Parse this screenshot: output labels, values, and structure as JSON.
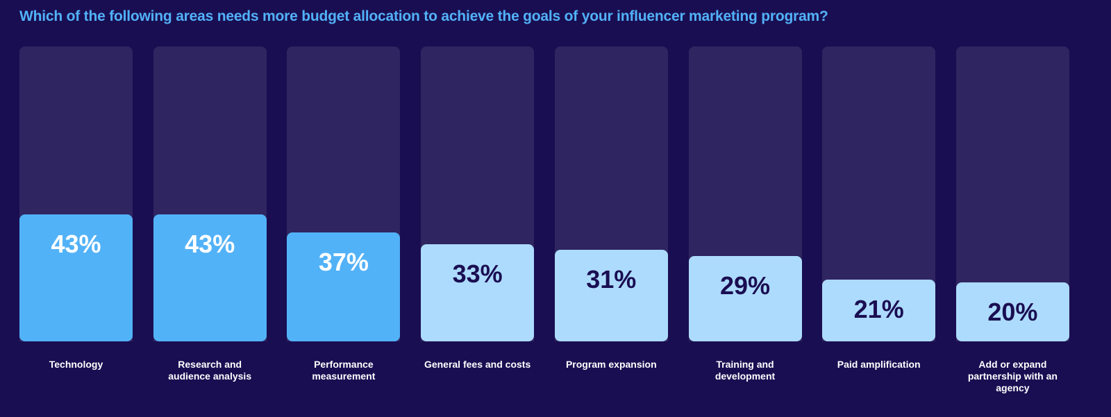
{
  "chart_data": {
    "type": "bar",
    "title": "Which of the following areas needs more budget allocation to achieve the goals of your influencer marketing program?",
    "categories": [
      "Technology",
      "Research and audience analysis",
      "Performance measurement",
      "General fees and costs",
      "Program expansion",
      "Training and development",
      "Paid amplification",
      "Add or expand partnership with an agency"
    ],
    "values": [
      43,
      43,
      37,
      33,
      31,
      29,
      21,
      20
    ],
    "value_labels": [
      "43%",
      "43%",
      "37%",
      "33%",
      "31%",
      "29%",
      "21%",
      "20%"
    ],
    "ylim": [
      0,
      100
    ],
    "xlabel": "",
    "ylabel": "",
    "grid": false,
    "highlight_count": 3
  },
  "colors": {
    "background": "#1a0e52",
    "track": "#2f2560",
    "highlight": "#52b2f8",
    "normal": "#addbfd",
    "title": "#52b2f8",
    "dark_text": "#1a0e52"
  }
}
